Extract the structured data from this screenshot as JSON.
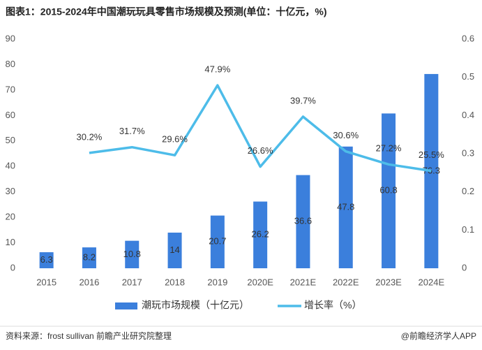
{
  "chart_data": {
    "type": "bar-line",
    "title": "图表1：2015-2024年中国潮玩玩具零售市场规模及预测(单位：十亿元，%)",
    "categories": [
      "2015",
      "2016",
      "2017",
      "2018",
      "2019",
      "2020E",
      "2021E",
      "2022E",
      "2023E",
      "2024E"
    ],
    "series": [
      {
        "name": "潮玩市场规模（十亿元）",
        "type": "bar",
        "color": "#3b7fdc",
        "axis": "y",
        "values": [
          6.3,
          8.2,
          10.8,
          14,
          20.7,
          26.2,
          36.6,
          47.8,
          60.8,
          76.3
        ]
      },
      {
        "name": "增长率（%）",
        "type": "line",
        "color": "#4dbce9",
        "axis": "y2",
        "values": [
          null,
          0.302,
          0.317,
          0.296,
          0.479,
          0.266,
          0.397,
          0.306,
          0.272,
          0.255
        ],
        "value_labels": [
          null,
          "30.2%",
          "31.7%",
          "29.6%",
          "47.9%",
          "26.6%",
          "39.7%",
          "30.6%",
          "27.2%",
          "25.5%"
        ]
      }
    ],
    "ylim": [
      0,
      90
    ],
    "yticks": [
      0,
      10,
      20,
      30,
      40,
      50,
      60,
      70,
      80,
      90
    ],
    "y2lim": [
      0,
      0.6
    ],
    "y2ticks": [
      0,
      0.1,
      0.2,
      0.3,
      0.4,
      0.5,
      0.6
    ],
    "source": "资料来源：frost sullivan 前瞻产业研究院整理",
    "credit": "@前瞻经济学人APP"
  }
}
